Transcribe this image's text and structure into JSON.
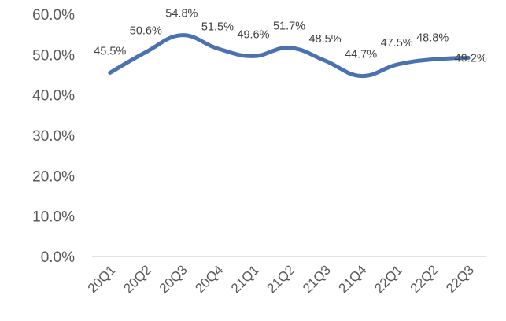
{
  "chart_data": {
    "type": "line",
    "categories": [
      "20Q1",
      "20Q2",
      "20Q3",
      "20Q4",
      "21Q1",
      "21Q2",
      "21Q3",
      "21Q4",
      "22Q1",
      "22Q2",
      "22Q3"
    ],
    "series": [
      {
        "values": [
          45.5,
          50.6,
          54.8,
          51.5,
          49.6,
          51.7,
          48.5,
          44.7,
          47.5,
          48.8,
          49.2
        ],
        "labels": [
          "45.5%",
          "50.6%",
          "54.8%",
          "51.5%",
          "49.6%",
          "51.7%",
          "48.5%",
          "44.7%",
          "47.5%",
          "48.8%",
          "49.2%"
        ]
      }
    ],
    "y_ticks": [
      "0.0%",
      "10.0%",
      "20.0%",
      "30.0%",
      "40.0%",
      "50.0%",
      "60.0%"
    ],
    "ylim": [
      0,
      60
    ],
    "unit": "%",
    "line_color": "#4a72b0",
    "grid": false,
    "legend": "none"
  }
}
